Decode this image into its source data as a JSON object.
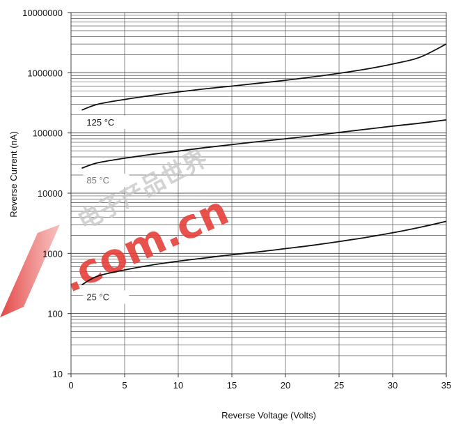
{
  "chart_data": {
    "type": "line",
    "xlabel": "Reverse Voltage (Volts)",
    "ylabel": "Reverse Current (nA)",
    "xlim": [
      0,
      35
    ],
    "ylim": [
      10,
      10000000
    ],
    "yscale": "log",
    "grid": true,
    "x_ticks": [
      "0",
      "5",
      "10",
      "15",
      "20",
      "25",
      "30",
      "35"
    ],
    "y_ticks": [
      "10",
      "100",
      "1000",
      "10000",
      "100000",
      "1000000",
      "10000000"
    ],
    "series": [
      {
        "name": "125 °C",
        "x": [
          1,
          2.5,
          5,
          7.5,
          10,
          12.5,
          15,
          17.5,
          20,
          22.5,
          25,
          27.5,
          30,
          32.5,
          35
        ],
        "y": [
          240000,
          300000,
          360000,
          420000,
          480000,
          540000,
          600000,
          670000,
          750000,
          850000,
          980000,
          1150000,
          1400000,
          1800000,
          3000000
        ]
      },
      {
        "name": "85 °C",
        "x": [
          1,
          2.5,
          5,
          7.5,
          10,
          12.5,
          15,
          17.5,
          20,
          22.5,
          25,
          27.5,
          30,
          32.5,
          35
        ],
        "y": [
          26000,
          32000,
          38000,
          44000,
          50000,
          57000,
          64000,
          72000,
          80000,
          90000,
          102000,
          115000,
          130000,
          145000,
          165000
        ]
      },
      {
        "name": "25 °C",
        "x": [
          1,
          2.5,
          5,
          7.5,
          10,
          12.5,
          15,
          17.5,
          20,
          22.5,
          25,
          27.5,
          30,
          32.5,
          35
        ],
        "y": [
          300,
          420,
          530,
          640,
          740,
          840,
          950,
          1060,
          1200,
          1360,
          1570,
          1840,
          2200,
          2700,
          3400
        ]
      }
    ]
  },
  "colors": {
    "line": "#111111",
    "grid": "#555555",
    "watermark": "#e5403a"
  },
  "watermark": {
    "line1": "电子产品世界",
    "line2": ".com.cn"
  }
}
